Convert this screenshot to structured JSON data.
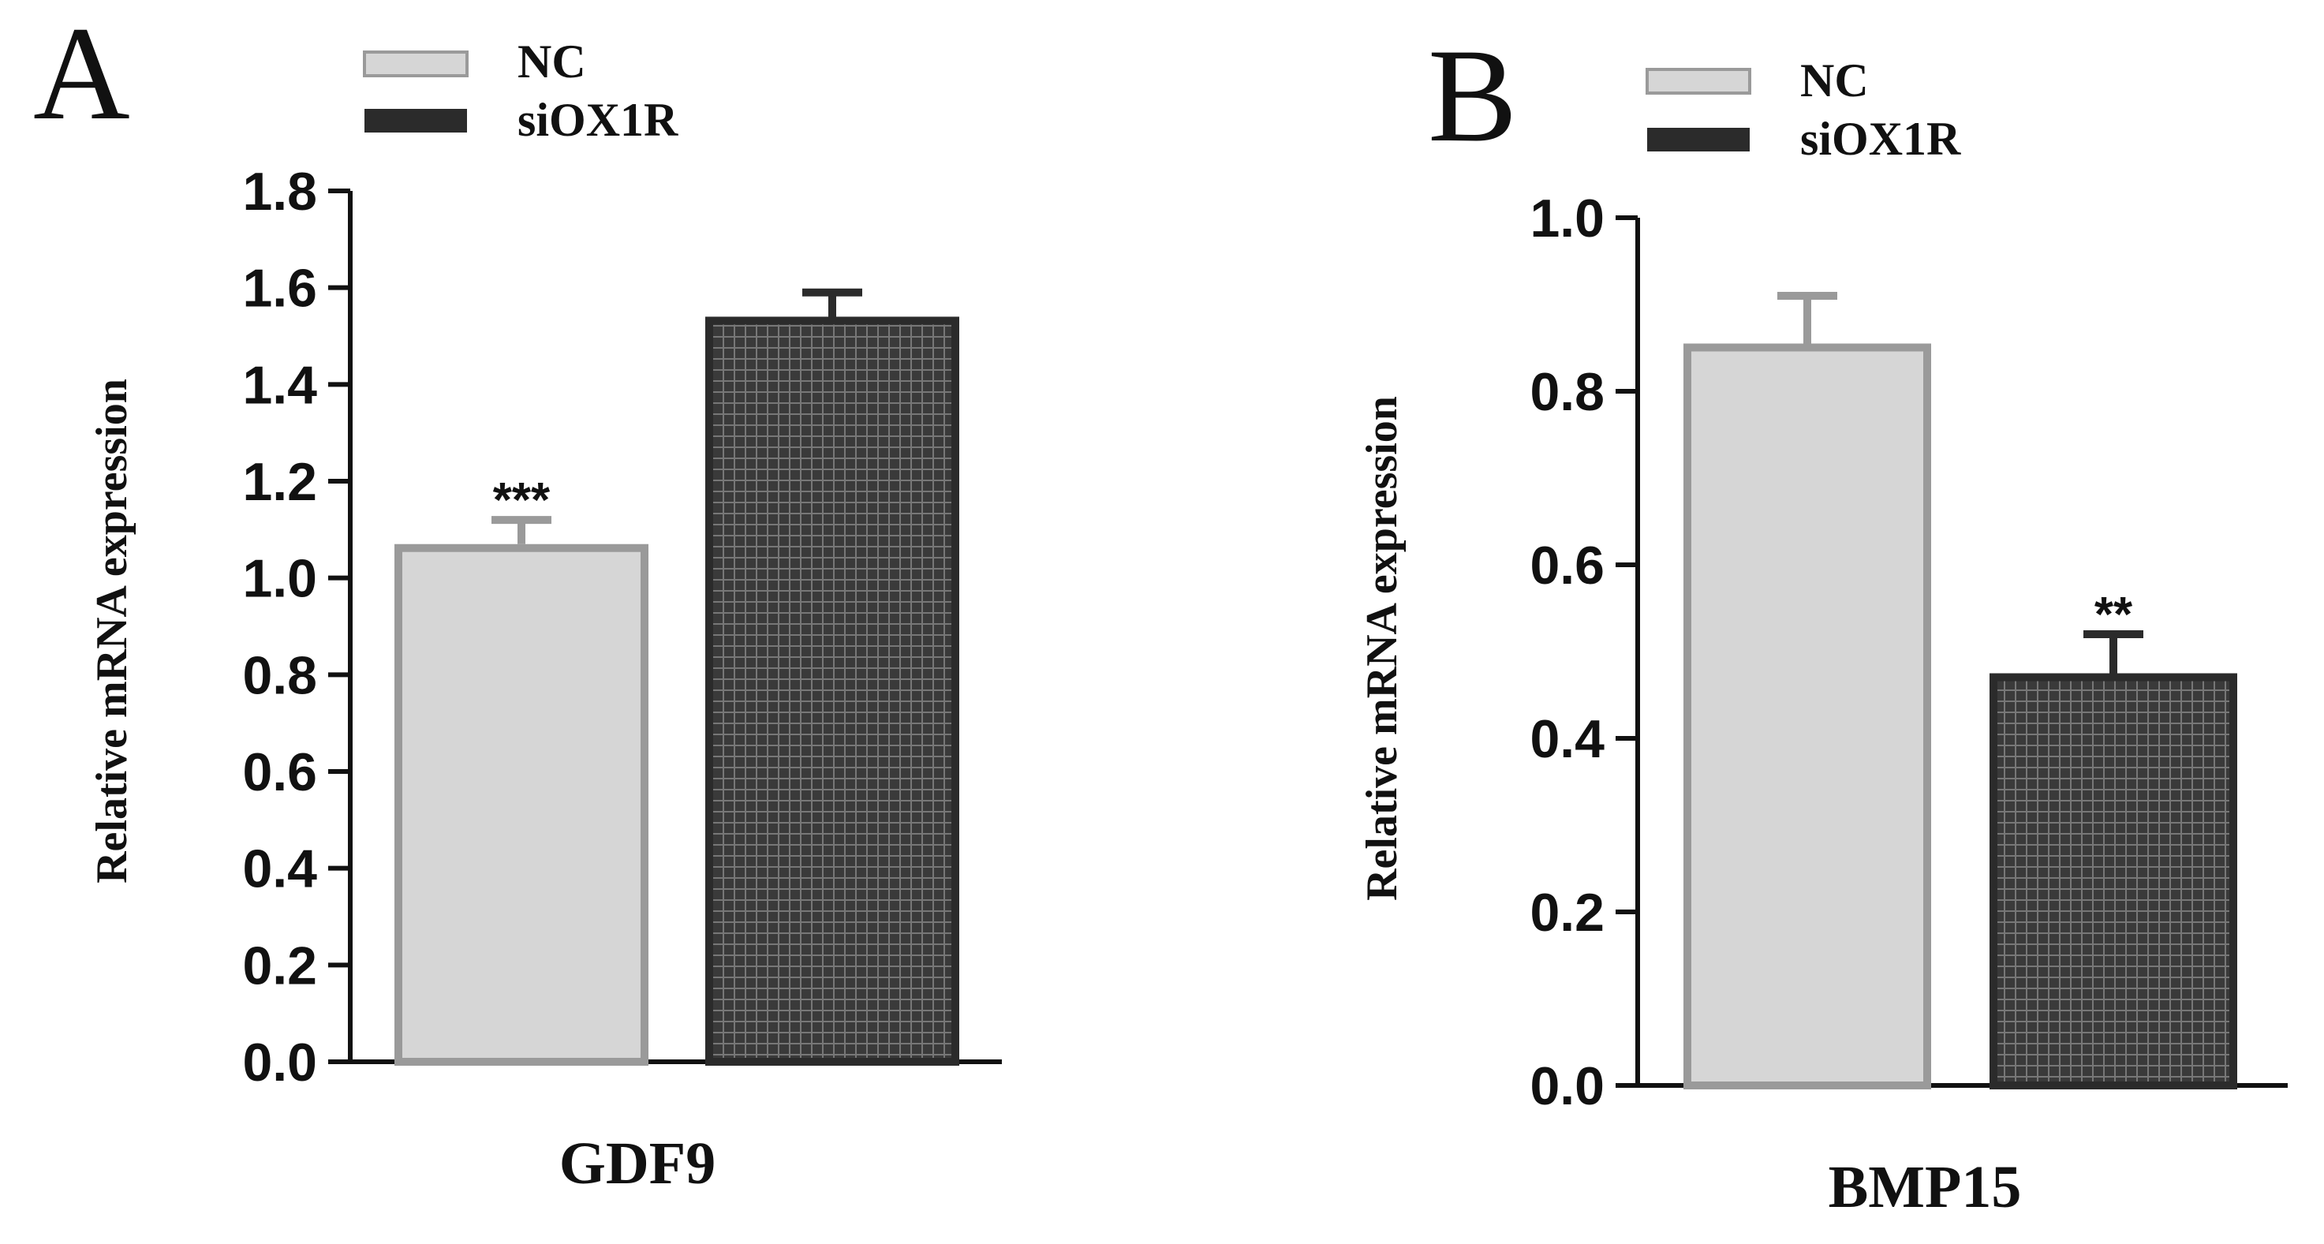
{
  "colors": {
    "nc_fill": "#d6d6d6",
    "nc_stroke": "#9a9a9a",
    "si_fill": "#3a3a3a",
    "si_stroke": "#2b2b2b",
    "axis": "#111111"
  },
  "chart_data": [
    {
      "panel": "A",
      "type": "bar",
      "title": "",
      "xlabel": "GDF9",
      "ylabel": "Relative mRNA expression",
      "ylim": [
        0,
        1.8
      ],
      "yticks": [
        "0.0",
        "0.2",
        "0.4",
        "0.6",
        "0.8",
        "1.0",
        "1.2",
        "1.4",
        "1.6",
        "1.8"
      ],
      "legend": [
        "NC",
        "siOX1R"
      ],
      "legend_position": "top",
      "series": [
        {
          "name": "NC",
          "value": 1.07,
          "error": 0.05,
          "significance": "***"
        },
        {
          "name": "siOX1R",
          "value": 1.54,
          "error": 0.05,
          "significance": ""
        }
      ]
    },
    {
      "panel": "B",
      "type": "bar",
      "title": "",
      "xlabel": "BMP15",
      "ylabel": "Relative mRNA expression",
      "ylim": [
        0,
        1.0
      ],
      "yticks": [
        "0.0",
        "0.2",
        "0.4",
        "0.6",
        "0.8",
        "1.0"
      ],
      "legend": [
        "NC",
        "siOX1R"
      ],
      "legend_position": "top",
      "series": [
        {
          "name": "NC",
          "value": 0.855,
          "error": 0.055,
          "significance": ""
        },
        {
          "name": "siOX1R",
          "value": 0.475,
          "error": 0.045,
          "significance": "**"
        }
      ]
    }
  ]
}
